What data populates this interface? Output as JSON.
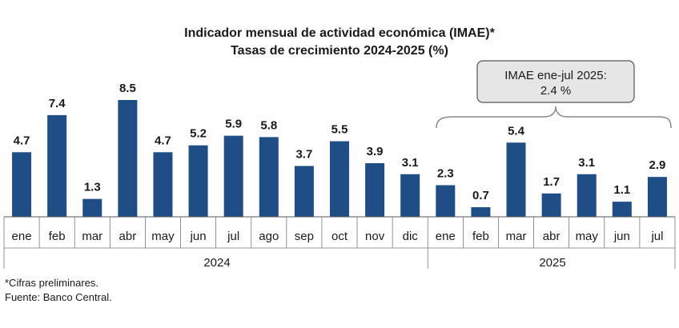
{
  "chart_data": {
    "type": "bar",
    "title": "Indicador mensual de actividad económica (IMAE)*",
    "subtitle": "Tasas de crecimiento 2024-2025 (%)",
    "bar_color": "#1f4e86",
    "groups": [
      {
        "year": "2024",
        "categories": [
          "ene",
          "feb",
          "mar",
          "abr",
          "may",
          "jun",
          "jul",
          "ago",
          "sep",
          "oct",
          "nov",
          "dic"
        ],
        "values": [
          4.7,
          7.4,
          1.3,
          8.5,
          4.7,
          5.2,
          5.9,
          5.8,
          3.7,
          5.5,
          3.9,
          3.1
        ]
      },
      {
        "year": "2025",
        "categories": [
          "ene",
          "feb",
          "mar",
          "abr",
          "may",
          "jun",
          "jul"
        ],
        "values": [
          2.3,
          0.7,
          5.4,
          1.7,
          3.1,
          1.1,
          2.9
        ]
      }
    ],
    "value_labels": [
      "4.7",
      "7.4",
      "1.3",
      "8.5",
      "4.7",
      "5.2",
      "5.9",
      "5.8",
      "3.7",
      "5.5",
      "3.9",
      "3.1",
      "2.3",
      "0.7",
      "5.4",
      "1.7",
      "3.1",
      "1.1",
      "2.9"
    ],
    "callout": {
      "line1": "IMAE ene-jul 2025:",
      "line2": "2.4 %"
    },
    "ylim": [
      0,
      8.5
    ]
  },
  "footnotes": {
    "note": "*Cifras preliminares.",
    "source": "Fuente: Banco Central."
  }
}
